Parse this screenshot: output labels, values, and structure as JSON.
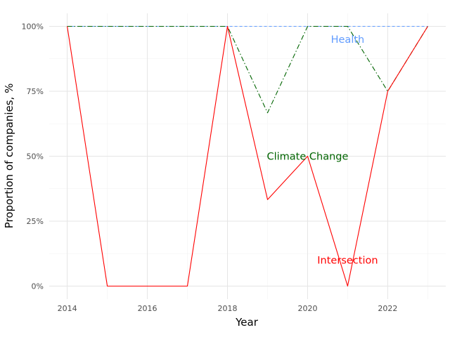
{
  "chart_data": {
    "type": "line",
    "xlabel": "Year",
    "ylabel": "Proportion of companies, %",
    "xlim": [
      2013.55,
      2023.45
    ],
    "ylim": [
      -0.05,
      1.05
    ],
    "x_ticks": [
      2014,
      2016,
      2018,
      2020,
      2022
    ],
    "x_tick_labels": [
      "2014",
      "2016",
      "2018",
      "2020",
      "2022"
    ],
    "y_ticks": [
      0,
      0.25,
      0.5,
      0.75,
      1.0
    ],
    "y_tick_labels": [
      "0%",
      "25%",
      "50%",
      "75%",
      "100%"
    ],
    "grid": true,
    "x": [
      2014,
      2015,
      2016,
      2017,
      2018,
      2019,
      2020,
      2021,
      2022,
      2023
    ],
    "series": [
      {
        "name": "Health",
        "color": "#619CFF",
        "dash": "dashed",
        "values": [
          1.0,
          1.0,
          1.0,
          1.0,
          1.0,
          1.0,
          1.0,
          1.0,
          1.0,
          1.0
        ],
        "label_x": 2021.0,
        "label_y": 0.95
      },
      {
        "name": "Climate Change",
        "color": "#006400",
        "dash": "dashdot",
        "values": [
          1.0,
          1.0,
          1.0,
          1.0,
          1.0,
          0.667,
          1.0,
          1.0,
          0.75,
          1.0
        ],
        "label_x": 2020.0,
        "label_y": 0.5
      },
      {
        "name": "Intersection",
        "color": "#FF0000",
        "dash": "solid",
        "values": [
          1.0,
          0.0,
          0.0,
          0.0,
          1.0,
          0.333,
          0.5,
          0.0,
          0.75,
          1.0
        ],
        "label_x": 2021.0,
        "label_y": 0.1
      }
    ]
  }
}
